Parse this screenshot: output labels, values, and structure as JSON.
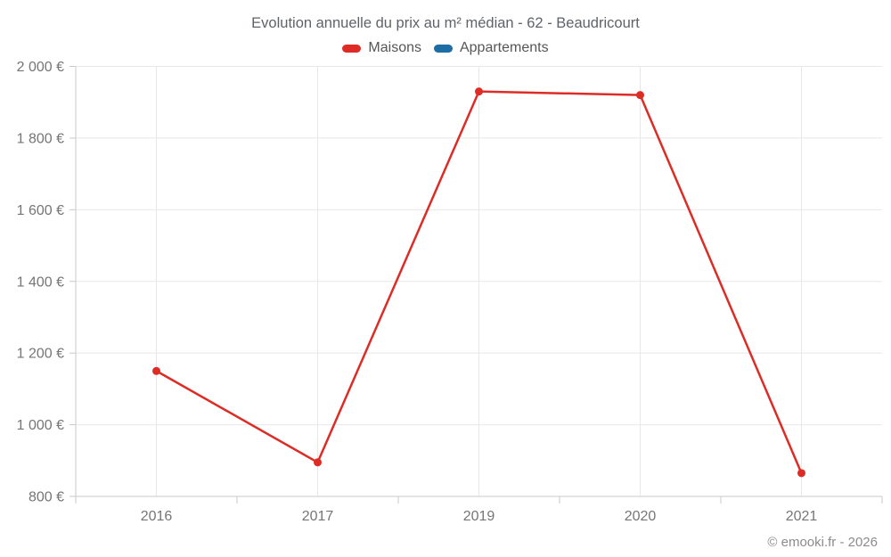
{
  "chart_data": {
    "type": "line",
    "title": "Evolution annuelle du prix au m² médian - 62 - Beaudricourt",
    "categories": [
      "2016",
      "2017",
      "2019",
      "2020",
      "2021"
    ],
    "series": [
      {
        "name": "Maisons",
        "color": "#dd2c26",
        "values": [
          1150,
          895,
          1930,
          1920,
          865
        ]
      },
      {
        "name": "Appartements",
        "color": "#1c6ea4",
        "values": []
      }
    ],
    "ylim": [
      800,
      2000
    ],
    "yticks": {
      "values": [
        800,
        1000,
        1200,
        1400,
        1600,
        1800,
        2000
      ],
      "labels": [
        "800 €",
        "1 000 €",
        "1 200 €",
        "1 400 €",
        "1 600 €",
        "1 800 €",
        "2 000 €"
      ]
    },
    "xlabel": "",
    "ylabel": "",
    "grid": "on",
    "legend_position": "top",
    "unit": "€"
  },
  "colors": {
    "grid_line": "#e8e8e8",
    "axis_line": "#c9c9c9",
    "tick_label": "#757575"
  },
  "footer": {
    "copyright": "© emooki.fr - 2026"
  }
}
